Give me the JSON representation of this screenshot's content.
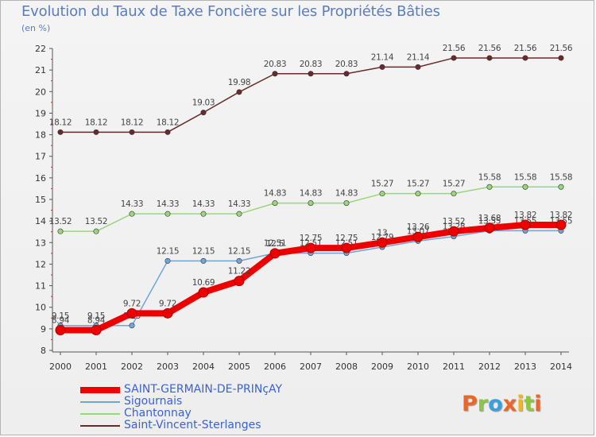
{
  "title": "Evolution du Taux de Taxe Foncière sur les Propriétés Bâties",
  "unit": "(en %)",
  "logo": {
    "letters": [
      "P",
      "r",
      "o",
      "x",
      "i",
      "t",
      "i"
    ],
    "colors": [
      "#e8682a",
      "#8dc63f",
      "#3aa0dc",
      "#e8682a",
      "#f0b428",
      "#8dc63f",
      "#e8682a"
    ]
  },
  "chart_data": {
    "type": "line",
    "x": [
      2000,
      2001,
      2002,
      2003,
      2004,
      2005,
      2006,
      2007,
      2008,
      2009,
      2010,
      2011,
      2012,
      2013,
      2014
    ],
    "ylim": [
      8,
      22
    ],
    "yticks": [
      8,
      9,
      10,
      11,
      12,
      13,
      14,
      15,
      16,
      17,
      18,
      19,
      20,
      21,
      22
    ],
    "grid": false,
    "legend_position": "bottom-left",
    "series": [
      {
        "name": "Saint-Vincent-Sterlanges",
        "color": "#6b2a2a",
        "values": [
          18.12,
          18.12,
          18.12,
          18.12,
          19.03,
          19.98,
          20.83,
          20.83,
          20.83,
          21.14,
          21.14,
          21.56,
          21.56,
          21.56,
          21.56
        ],
        "labels": [
          "18.12",
          "18.12",
          "18.12",
          "18.12",
          "19.03",
          "19.98",
          "20.83",
          "20.83",
          "20.83",
          "21.14",
          "21.14",
          "21.56",
          "21.56",
          "21.56",
          "21.56"
        ]
      },
      {
        "name": "Chantonnay",
        "color": "#9ad67a",
        "values": [
          13.52,
          13.52,
          14.33,
          14.33,
          14.33,
          14.33,
          14.83,
          14.83,
          14.83,
          15.27,
          15.27,
          15.27,
          15.58,
          15.58,
          15.58
        ],
        "labels": [
          "13.52",
          "13.52",
          "14.33",
          "14.33",
          "14.33",
          "14.33",
          "14.83",
          "14.83",
          "14.83",
          "15.27",
          "15.27",
          "15.27",
          "15.58",
          "15.58",
          "15.58"
        ]
      },
      {
        "name": "Sigournais",
        "color": "#6fa5d8",
        "values": [
          9.15,
          9.15,
          9.15,
          12.15,
          12.15,
          12.15,
          12.51,
          12.51,
          12.51,
          12.79,
          13.07,
          13.28,
          13.55,
          13.55,
          13.55
        ],
        "labels": [
          "9.15",
          "9.15",
          "9.15",
          "12.15",
          "12.15",
          "12.15",
          "12.51",
          "12.51",
          "12.51",
          "12.79",
          "13.07",
          "13.28",
          "13.55",
          "13.55",
          "13.55"
        ]
      },
      {
        "name": "SAINT-GERMAIN-DE-PRINçAY",
        "color": "#ee0000",
        "values": [
          8.94,
          8.94,
          9.72,
          9.72,
          10.69,
          11.22,
          12.5,
          12.75,
          12.75,
          13,
          13.26,
          13.52,
          13.68,
          13.82,
          13.82
        ],
        "labels": [
          "8.94",
          "8.94",
          "9.72",
          "9.72",
          "10.69",
          "11.22",
          "12.5",
          "12.75",
          "12.75",
          "13",
          "13.26",
          "13.52",
          "13.68",
          "13.82",
          "13.82"
        ]
      }
    ]
  },
  "legend": [
    {
      "label": "SAINT-GERMAIN-DE-PRINçAY",
      "color": "#ee0000"
    },
    {
      "label": "Sigournais",
      "color": "#6fa5d8"
    },
    {
      "label": "Chantonnay",
      "color": "#9ad67a"
    },
    {
      "label": "Saint-Vincent-Sterlanges",
      "color": "#6b2a2a"
    }
  ]
}
